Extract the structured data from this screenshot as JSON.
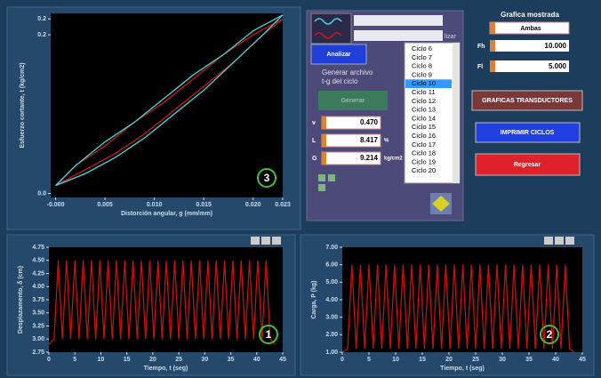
{
  "chart_data": [
    {
      "type": "line",
      "x_label": "Distorción angular, g (mm/mm)",
      "y_label": "Esfuerzo cortante, t (kg/cm2)",
      "annotation": "3",
      "x": [
        0,
        0.003,
        0.006,
        0.009,
        0.012,
        0.015,
        0.018,
        0.021,
        0.023,
        0.02,
        0.017,
        0.014,
        0.011,
        0.008,
        0.005,
        0.002,
        0
      ],
      "series": [
        {
          "color": "#d01818",
          "values": [
            0.01,
            0.03,
            0.05,
            0.075,
            0.105,
            0.135,
            0.165,
            0.2,
            0.22,
            0.2,
            0.175,
            0.145,
            0.115,
            0.09,
            0.06,
            0.035,
            0.01
          ]
        },
        {
          "color": "#40d8e0",
          "values": [
            0.01,
            0.025,
            0.045,
            0.07,
            0.1,
            0.13,
            0.165,
            0.2,
            0.225,
            0.205,
            0.175,
            0.15,
            0.12,
            0.09,
            0.065,
            0.035,
            0.01
          ]
        }
      ],
      "xlim": [
        -0.0005,
        0.023
      ],
      "ylim": [
        -0.005,
        0.227
      ],
      "xticks": [
        {
          "value": 0,
          "label": "-0.000"
        },
        0.005,
        {
          "value": 0.01,
          "label": "0.010"
        },
        0.015,
        {
          "value": 0.02,
          "label": "0.020"
        },
        0.023
      ],
      "yticks": [
        {
          "value": 0,
          "label": "0.0"
        },
        0.2,
        {
          "value": 0.22,
          "label": "0.2"
        }
      ]
    },
    {
      "type": "line",
      "x_label": "Tiempo, t (seg)",
      "y_label": "Desplazamento, δ (cm)",
      "annotation": "1",
      "x": [
        0,
        1,
        1.8,
        2.6,
        3.4,
        4.2,
        5,
        5.8,
        6.6,
        7.4,
        8.2,
        9,
        9.8,
        10.6,
        11.4,
        12.2,
        13,
        13.8,
        14.6,
        15.4,
        16.2,
        17,
        17.8,
        18.6,
        19.4,
        20.2,
        21,
        21.8,
        22.6,
        23.4,
        24.2,
        25,
        25.8,
        26.6,
        27.4,
        28.2,
        29,
        29.8,
        30.6,
        31.4,
        32.2,
        33,
        33.8,
        34.6,
        35.4,
        36.2,
        37,
        37.8,
        38.6,
        39.4,
        40.2,
        41,
        41.8,
        42.6,
        43.5
      ],
      "series": [
        {
          "color": "#c81010",
          "values": [
            2.9,
            3.0,
            4.5,
            3.0,
            4.5,
            3.0,
            4.5,
            3.0,
            4.5,
            3.0,
            4.5,
            3.0,
            4.5,
            3.0,
            4.5,
            3.0,
            4.5,
            3.0,
            4.5,
            3.0,
            4.5,
            3.0,
            4.5,
            3.0,
            4.5,
            3.0,
            4.5,
            3.0,
            4.5,
            3.0,
            4.5,
            3.0,
            4.5,
            3.0,
            4.5,
            3.0,
            4.5,
            3.0,
            4.5,
            3.0,
            4.5,
            3.0,
            4.5,
            3.0,
            4.5,
            3.0,
            4.5,
            3.0,
            4.5,
            3.0,
            4.5,
            3.0,
            4.5,
            3.0,
            2.9
          ]
        }
      ],
      "xlim": [
        0,
        45
      ],
      "ylim": [
        2.75,
        4.75
      ],
      "xticks": [
        0,
        5,
        10,
        15,
        20,
        25,
        30,
        35,
        40,
        45
      ],
      "yticks": [
        2.75,
        {
          "value": 3,
          "label": "3.00"
        },
        3.25,
        {
          "value": 3.5,
          "label": "3.50"
        },
        3.75,
        {
          "value": 4,
          "label": "4.00"
        },
        4.25,
        {
          "value": 4.5,
          "label": "4.50"
        },
        4.75
      ]
    },
    {
      "type": "line",
      "x_label": "Tiempo, t (seg)",
      "y_label": "Carga, P (kg)",
      "annotation": "2",
      "x": [
        0,
        1,
        1.8,
        2.6,
        3.4,
        4.2,
        5,
        5.8,
        6.6,
        7.4,
        8.2,
        9,
        9.8,
        10.6,
        11.4,
        12.2,
        13,
        13.8,
        14.6,
        15.4,
        16.2,
        17,
        17.8,
        18.6,
        19.4,
        20.2,
        21,
        21.8,
        22.6,
        23.4,
        24.2,
        25,
        25.8,
        26.6,
        27.4,
        28.2,
        29,
        29.8,
        30.6,
        31.4,
        32.2,
        33,
        33.8,
        34.6,
        35.4,
        36.2,
        37,
        37.8,
        38.6,
        39.4,
        40.2,
        41,
        41.8,
        42.6,
        43.5
      ],
      "series": [
        {
          "color": "#c81010",
          "values": [
            1.0,
            1.2,
            6.0,
            1.2,
            6.0,
            1.2,
            6.0,
            1.2,
            6.0,
            1.2,
            6.0,
            1.2,
            6.0,
            1.2,
            6.0,
            1.2,
            6.0,
            1.2,
            6.0,
            1.2,
            6.0,
            1.2,
            6.0,
            1.2,
            6.0,
            1.2,
            6.0,
            1.2,
            6.0,
            1.2,
            6.0,
            1.2,
            6.0,
            1.2,
            6.0,
            1.2,
            6.0,
            1.2,
            6.0,
            1.2,
            6.0,
            1.2,
            6.0,
            1.2,
            6.0,
            1.2,
            6.0,
            1.2,
            6.0,
            1.2,
            6.0,
            1.2,
            6.0,
            1.2,
            1.0
          ]
        }
      ],
      "xlim": [
        0,
        45
      ],
      "ylim": [
        1,
        7
      ],
      "xticks": [
        0,
        5,
        10,
        15,
        20,
        25,
        30,
        35,
        40,
        45
      ],
      "yticks": [
        {
          "value": 1,
          "label": "1.00"
        },
        {
          "value": 2,
          "label": "2.00"
        },
        {
          "value": 3,
          "label": "3.00"
        },
        {
          "value": 4,
          "label": "4.00"
        },
        {
          "value": 5,
          "label": "5.00"
        },
        {
          "value": 6,
          "label": "6.00"
        },
        {
          "value": 7,
          "label": "7.00"
        }
      ]
    }
  ],
  "analysis": {
    "legend_overflow": "lizar",
    "analyze_button": "Analizar",
    "generate_label": [
      "Generar archivo",
      "t-g del ciclo"
    ],
    "generate_button": "Generar",
    "params": [
      {
        "label": "v",
        "value": "0.470"
      },
      {
        "label": "L",
        "value": "8.417",
        "unit": "%"
      },
      {
        "label": "G",
        "value": "9.214",
        "unit": "kg/cm2"
      }
    ],
    "cycles": [
      "Ciclo 6",
      "Ciclo 7",
      "Ciclo 8",
      "Ciclo 9",
      "Ciclo 10",
      "Ciclo 11",
      "Ciclo 12",
      "Ciclo 13",
      "Ciclo 14",
      "Ciclo 15",
      "Ciclo 16",
      "Ciclo 17",
      "Ciclo 18",
      "Ciclo 19",
      "Ciclo 20"
    ],
    "selected_index": 4
  },
  "display": {
    "title": "Grafica mostrada",
    "mode": "Ambas",
    "fh_label": "Fh",
    "fh": "10.000",
    "fl_label": "Fl",
    "fl": "5.000",
    "buttons": [
      "GRAFICAS TRANSDUCTORES",
      "IMPRIMIR CICLOS",
      "Regresar"
    ]
  }
}
